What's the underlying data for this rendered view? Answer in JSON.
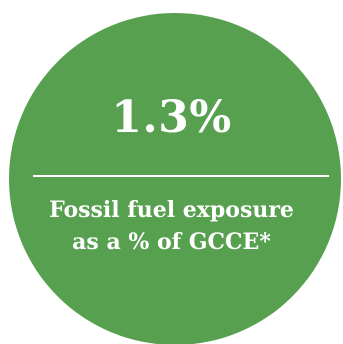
{
  "stat": {
    "value": "1.3%",
    "caption_line1": "Fossil fuel exposure",
    "caption_line2": "as a % of GCCE*"
  },
  "colors": {
    "circle_fill": "#56a050",
    "text": "#ffffff",
    "background": "#ffffff"
  }
}
